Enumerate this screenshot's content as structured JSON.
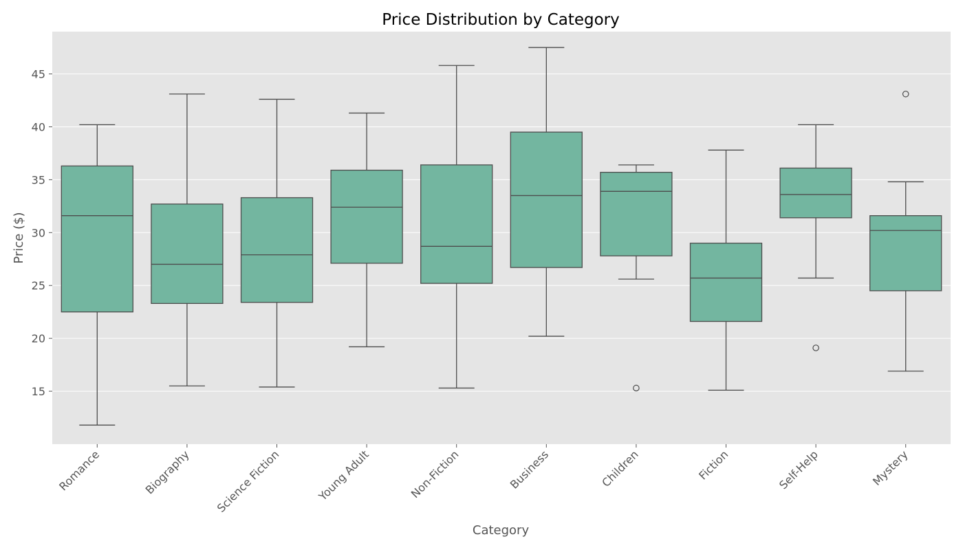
{
  "chart_data": {
    "type": "box",
    "title": "Price Distribution by Category",
    "xlabel": "Category",
    "ylabel": "Price ($)",
    "ylim": [
      10.0,
      49.0
    ],
    "yticks": [
      15,
      20,
      25,
      30,
      35,
      40,
      45
    ],
    "ytick_labels": [
      "15",
      "20",
      "25",
      "30",
      "35",
      "40",
      "45"
    ],
    "grid": true,
    "legend": "none",
    "colors": {
      "box_fill": "#73b6a0",
      "box_line": "#4d4d4d",
      "plot_background": "#e5e5e5",
      "grid": "#ffffff",
      "tick": "#555555"
    },
    "categories": [
      "Romance",
      "Biography",
      "Science Fiction",
      "Young Adult",
      "Non-Fiction",
      "Business",
      "Children",
      "Fiction",
      "Self-Help",
      "Mystery"
    ],
    "boxes": [
      {
        "category": "Romance",
        "whisker_low": 11.8,
        "q1": 22.5,
        "median": 31.6,
        "q3": 36.3,
        "whisker_high": 40.2,
        "outliers": []
      },
      {
        "category": "Biography",
        "whisker_low": 15.5,
        "q1": 23.3,
        "median": 27.0,
        "q3": 32.7,
        "whisker_high": 43.1,
        "outliers": []
      },
      {
        "category": "Science Fiction",
        "whisker_low": 15.4,
        "q1": 23.4,
        "median": 27.9,
        "q3": 33.3,
        "whisker_high": 42.6,
        "outliers": []
      },
      {
        "category": "Young Adult",
        "whisker_low": 19.2,
        "q1": 27.1,
        "median": 32.4,
        "q3": 35.9,
        "whisker_high": 41.3,
        "outliers": []
      },
      {
        "category": "Non-Fiction",
        "whisker_low": 15.3,
        "q1": 25.2,
        "median": 28.7,
        "q3": 36.4,
        "whisker_high": 45.8,
        "outliers": []
      },
      {
        "category": "Business",
        "whisker_low": 20.2,
        "q1": 26.7,
        "median": 33.5,
        "q3": 39.5,
        "whisker_high": 47.5,
        "outliers": []
      },
      {
        "category": "Children",
        "whisker_low": 25.6,
        "q1": 27.8,
        "median": 33.9,
        "q3": 35.7,
        "whisker_high": 36.4,
        "outliers": [
          15.3
        ]
      },
      {
        "category": "Fiction",
        "whisker_low": 15.1,
        "q1": 21.6,
        "median": 25.7,
        "q3": 29.0,
        "whisker_high": 37.8,
        "outliers": []
      },
      {
        "category": "Self-Help",
        "whisker_low": 25.7,
        "q1": 31.4,
        "median": 33.6,
        "q3": 36.1,
        "whisker_high": 40.2,
        "outliers": [
          19.1
        ]
      },
      {
        "category": "Mystery",
        "whisker_low": 16.9,
        "q1": 24.5,
        "median": 30.2,
        "q3": 31.6,
        "whisker_high": 34.8,
        "outliers": [
          43.1
        ]
      }
    ]
  }
}
